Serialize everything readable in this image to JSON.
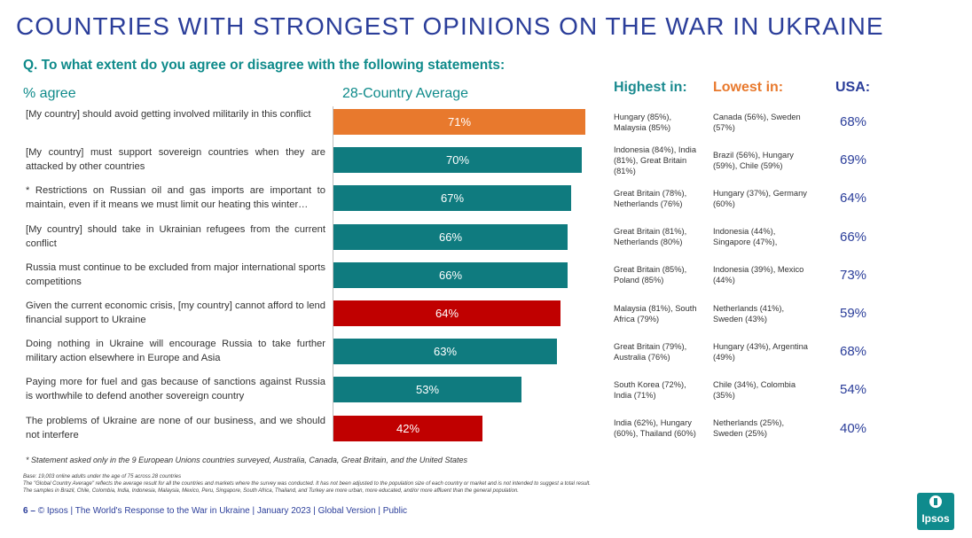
{
  "title": "COUNTRIES WITH STRONGEST OPINIONS ON THE WAR IN UKRAINE",
  "question": "Q. To what extent do you agree or disagree with the following statements:",
  "pct_agree_label": "% agree",
  "average_label": "28-Country Average",
  "headers": {
    "highest": "Highest in:",
    "lowest": "Lowest in:",
    "usa": "USA:"
  },
  "colors": {
    "orange": "#e8792d",
    "teal": "#0f7b7f",
    "red": "#c00000",
    "title": "#2b3e9a"
  },
  "chart_data": {
    "type": "bar",
    "orientation": "horizontal",
    "title": "28-Country Average",
    "xlim": [
      0,
      100
    ],
    "categories": [
      "[My country] should avoid getting involved militarily in this conflict",
      "[My country] must support sovereign countries when they are attacked by other countries",
      "* Restrictions on Russian oil and gas imports are important to maintain, even if it means we must limit our heating this winter…",
      "[My country] should take in Ukrainian refugees from the current conflict",
      "Russia must continue to be excluded from major international sports competitions",
      "Given the current economic crisis, [my country] cannot afford to lend financial support to Ukraine",
      "Doing nothing in Ukraine will encourage Russia to take further military action elsewhere in Europe and Asia",
      "Paying more for fuel and gas because of sanctions against Russia is worthwhile to defend another sovereign country",
      "The problems of Ukraine are none of our business, and we should not interfere"
    ],
    "values": [
      71,
      70,
      67,
      66,
      66,
      64,
      63,
      53,
      42
    ],
    "labels": [
      "71%",
      "70%",
      "67%",
      "66%",
      "66%",
      "64%",
      "63%",
      "53%",
      "42%"
    ],
    "bar_colors": [
      "orange",
      "teal",
      "teal",
      "teal",
      "teal",
      "red",
      "teal",
      "teal",
      "red"
    ]
  },
  "rows": [
    {
      "highest": "Hungary (85%), Malaysia (85%)",
      "lowest": "Canada (56%), Sweden (57%)",
      "usa": "68%"
    },
    {
      "highest": "Indonesia (84%), India (81%), Great Britain (81%)",
      "lowest": "Brazil (56%), Hungary (59%), Chile (59%)",
      "usa": "69%"
    },
    {
      "highest": "Great Britain (78%), Netherlands (76%)",
      "lowest": "Hungary (37%), Germany (60%)",
      "usa": "64%"
    },
    {
      "highest": "Great Britain (81%), Netherlands (80%)",
      "lowest": "Indonesia (44%), Singapore (47%),",
      "usa": "66%"
    },
    {
      "highest": "Great Britain (85%), Poland (85%)",
      "lowest": "Indonesia (39%), Mexico (44%)",
      "usa": "73%"
    },
    {
      "highest": "Malaysia (81%), South Africa (79%)",
      "lowest": "Netherlands (41%), Sweden (43%)",
      "usa": "59%"
    },
    {
      "highest": "Great Britain (79%), Australia (76%)",
      "lowest": "Hungary (43%), Argentina (49%)",
      "usa": "68%"
    },
    {
      "highest": "South Korea (72%), India (71%)",
      "lowest": "Chile (34%), Colombia (35%)",
      "usa": "54%"
    },
    {
      "highest": "India (62%), Hungary (60%), Thailand (60%)",
      "lowest": "Netherlands (25%), Sweden (25%)",
      "usa": "40%"
    }
  ],
  "footnote": "* Statement asked only in the 9 European Unions countries surveyed, Australia, Canada, Great Britain, and the United States",
  "fine_print": [
    "Base: 19,003 online adults under the age of 75 across 28 countries",
    "The \"Global Country Average\" reflects the average result for all the countries and markets where the survey was conducted. It has not been adjusted to the population size of each country or market and is not intended to suggest a total result.",
    "The samples in Brazil, Chile, Colombia, India, Indonesia, Malaysia, Mexico, Peru, Singapore, South Africa, Thailand, and Turkey are more urban, more educated, and/or more affluent than the general population."
  ],
  "footer": {
    "page_number": "6 –",
    "text": "© Ipsos | The World's Response to the War in Ukraine | January 2023 | Global Version | Public"
  },
  "logo_text": "Ipsos"
}
